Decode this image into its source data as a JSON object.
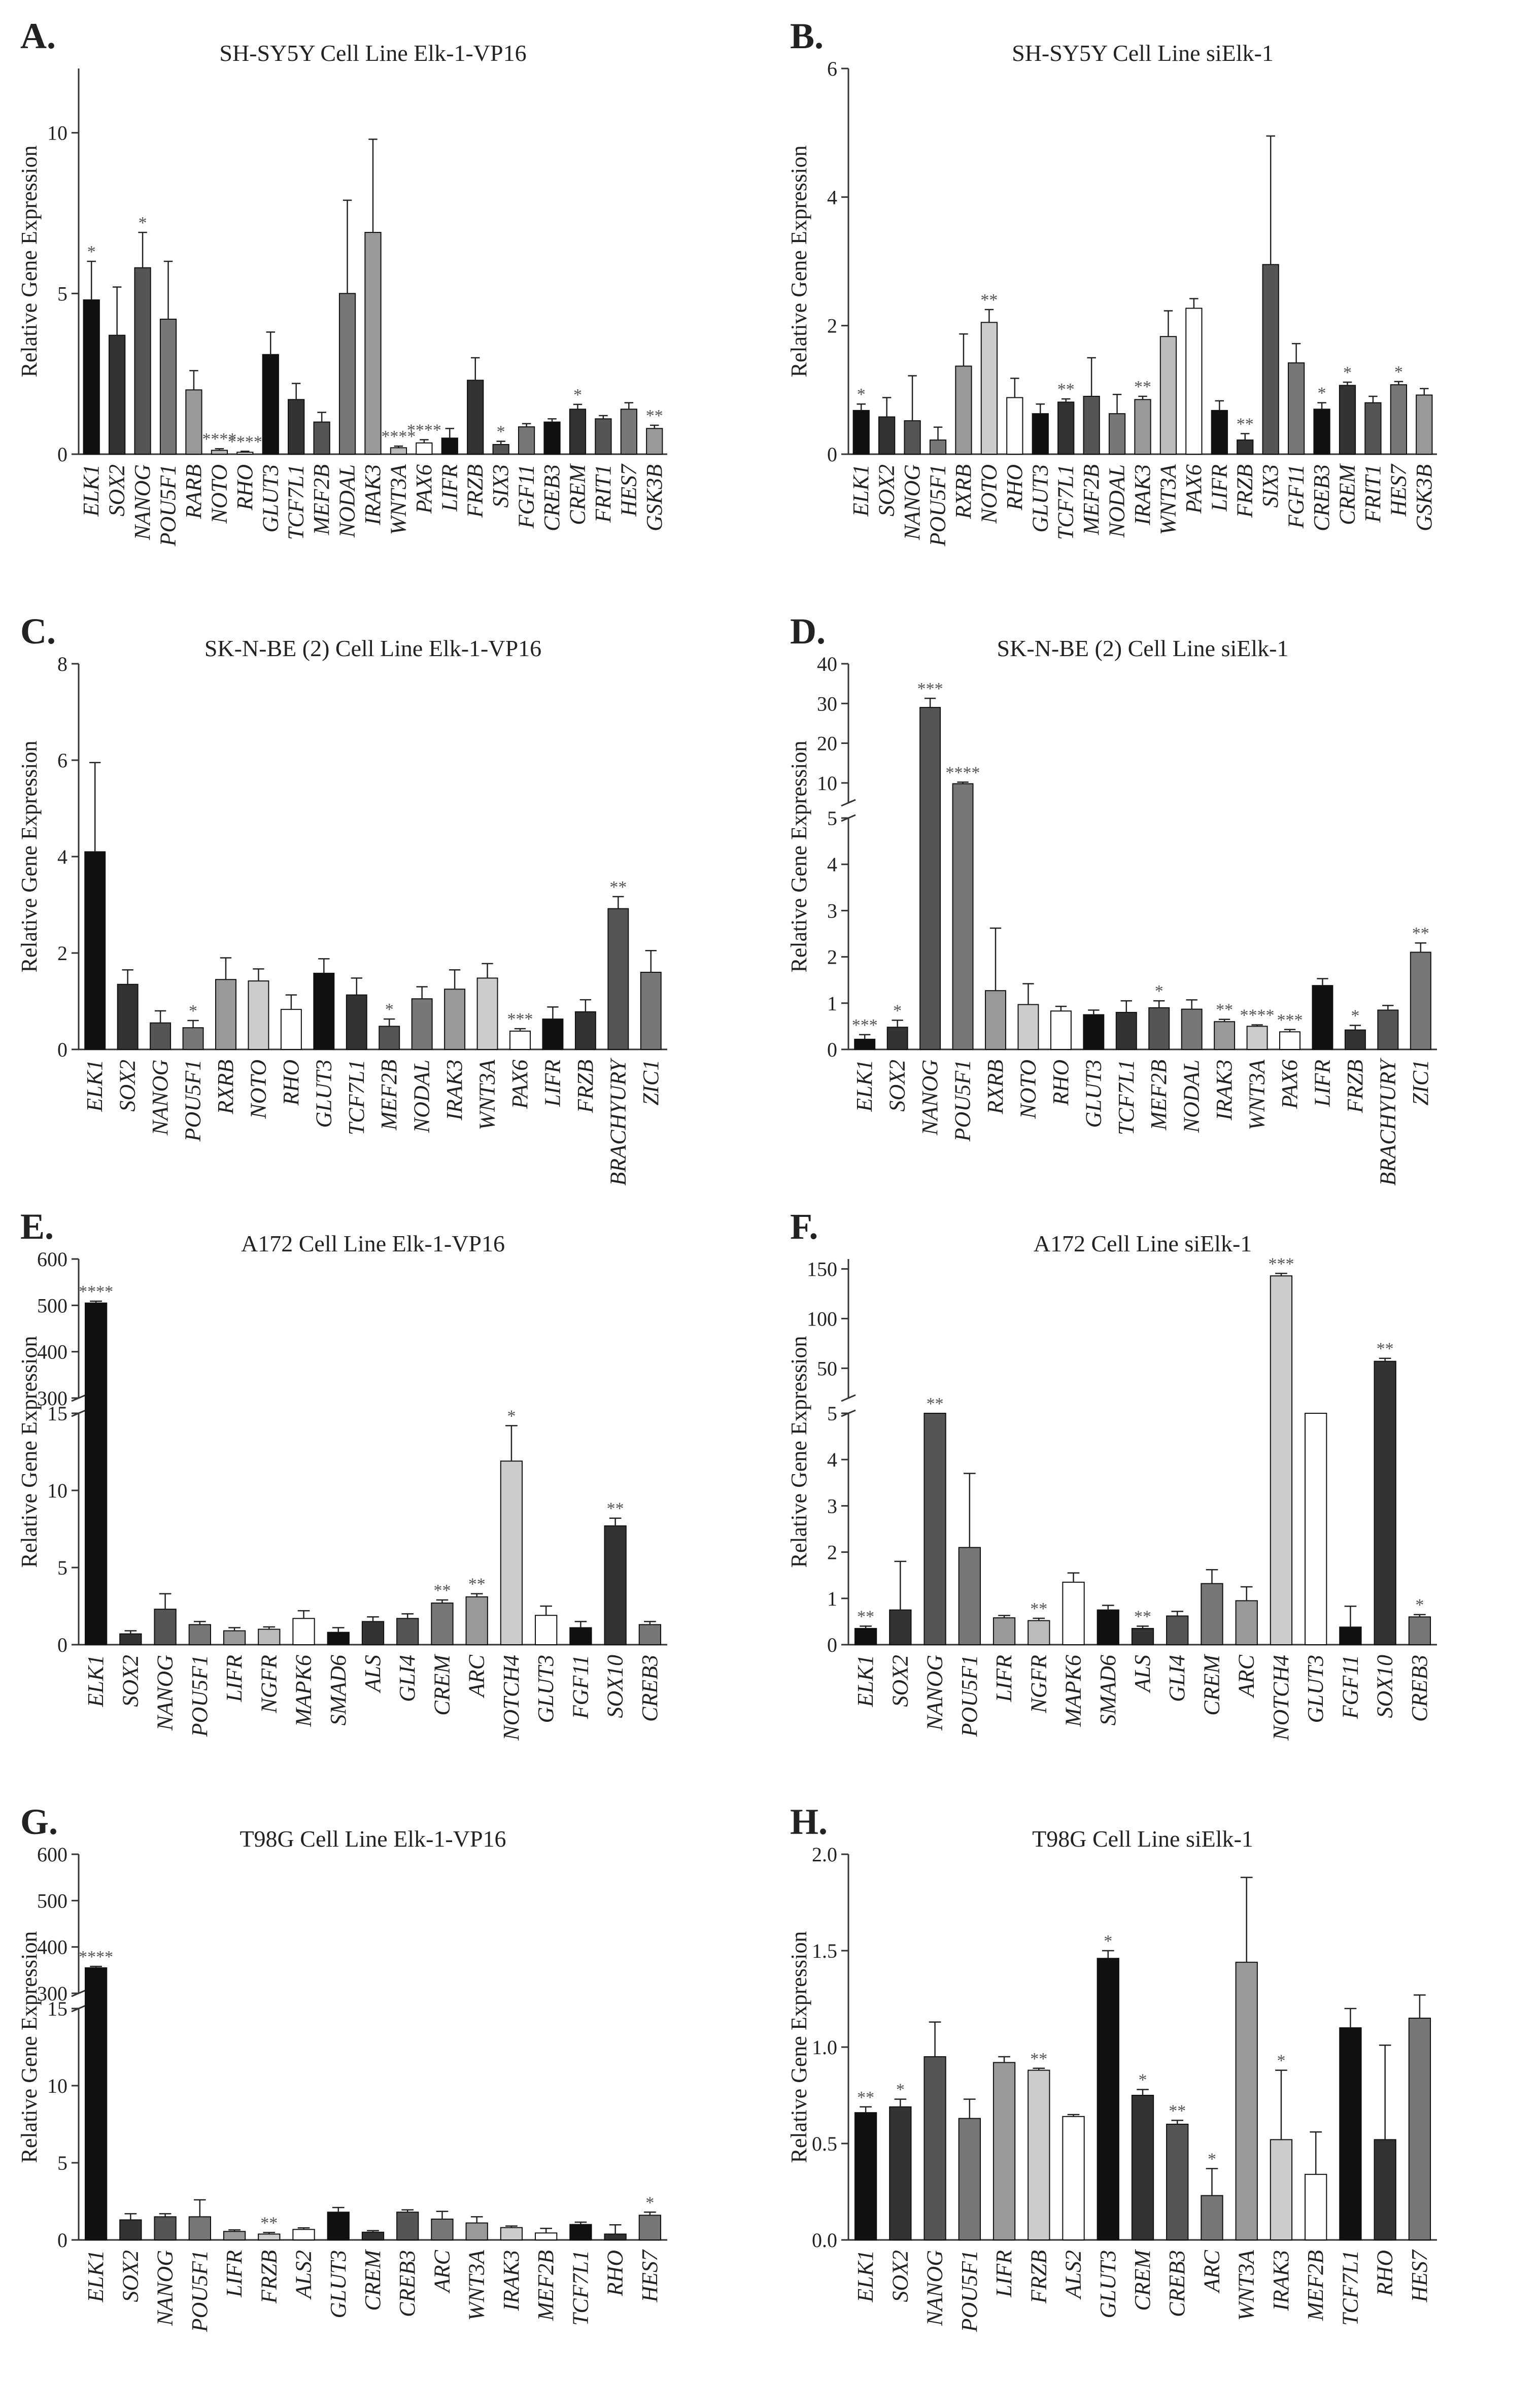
{
  "chart_data": [
    {
      "panel": "A.",
      "type": "bar",
      "title": "SH-SY5Y Cell  Line Elk-1-VP16",
      "ylabel": "Relative Gene Expression",
      "ylim": [
        0,
        12
      ],
      "yticks": [
        0,
        5,
        10
      ],
      "categories": [
        "ELK1",
        "SOX2",
        "NANOG",
        "POU5F1",
        "RARB",
        "NOTO",
        "RHO",
        "GLUT3",
        "TCF7L1",
        "MEF2B",
        "NODAL",
        "IRAK3",
        "WNT3A",
        "PAX6",
        "LIFR",
        "FRZB",
        "SIX3",
        "FGF11",
        "CREB3",
        "CREM",
        "FRIT1",
        "HES7",
        "GSK3B"
      ],
      "values": [
        4.8,
        3.7,
        5.8,
        4.2,
        2.0,
        0.12,
        0.06,
        3.1,
        1.7,
        1.0,
        5.0,
        6.9,
        0.2,
        0.35,
        0.5,
        2.3,
        0.3,
        0.85,
        1.0,
        1.4,
        1.1,
        1.4,
        0.8
      ],
      "errors": [
        1.2,
        1.5,
        1.1,
        1.8,
        0.6,
        0.05,
        0.03,
        0.7,
        0.5,
        0.3,
        2.9,
        2.9,
        0.05,
        0.1,
        0.3,
        0.7,
        0.1,
        0.1,
        0.1,
        0.15,
        0.1,
        0.2,
        0.1
      ],
      "colors": [
        "#111111",
        "#333333",
        "#555555",
        "#777777",
        "#999999",
        "#bbbbbb",
        "#ffffff",
        "#111111",
        "#333333",
        "#555555",
        "#777777",
        "#999999",
        "#bbbbbb",
        "#ffffff",
        "#111111",
        "#333333",
        "#555555",
        "#777777",
        "#111111",
        "#333333",
        "#555555",
        "#777777",
        "#999999"
      ],
      "sig": [
        "*",
        "",
        "*",
        "",
        "",
        "****",
        "****",
        "",
        "",
        "",
        "",
        "",
        "****",
        "****",
        "",
        "",
        "*",
        "",
        "",
        "*",
        "",
        "",
        "**"
      ]
    },
    {
      "panel": "B.",
      "type": "bar",
      "title": "SH-SY5Y Cell Line siElk-1",
      "ylabel": "Relative Gene Expression",
      "ylim": [
        0,
        6
      ],
      "yticks": [
        0,
        2,
        4,
        6
      ],
      "categories": [
        "ELK1",
        "SOX2",
        "NANOG",
        "POU5F1",
        "RXRB",
        "NOTO",
        "RHO",
        "GLUT3",
        "TCF7L1",
        "MEF2B",
        "NODAL",
        "IRAK3",
        "WNT3A",
        "PAX6",
        "LIFR",
        "FRZB",
        "SIX3",
        "FGF11",
        "CREB3",
        "CREM",
        "FRIT1",
        "HES7",
        "GSK3B"
      ],
      "values": [
        0.68,
        0.58,
        0.52,
        0.22,
        1.37,
        2.05,
        0.88,
        0.63,
        0.81,
        0.9,
        0.63,
        0.85,
        1.83,
        2.27,
        0.68,
        0.22,
        2.95,
        1.42,
        0.7,
        1.07,
        0.8,
        1.08,
        0.92
      ],
      "errors": [
        0.1,
        0.3,
        0.7,
        0.2,
        0.5,
        0.2,
        0.3,
        0.15,
        0.05,
        0.6,
        0.3,
        0.05,
        0.4,
        0.15,
        0.15,
        0.1,
        2.0,
        0.3,
        0.1,
        0.05,
        0.1,
        0.05,
        0.1
      ],
      "colors": [
        "#111111",
        "#333333",
        "#555555",
        "#777777",
        "#999999",
        "#cccccc",
        "#ffffff",
        "#111111",
        "#333333",
        "#555555",
        "#777777",
        "#999999",
        "#bbbbbb",
        "#ffffff",
        "#111111",
        "#333333",
        "#555555",
        "#777777",
        "#111111",
        "#333333",
        "#555555",
        "#777777",
        "#999999"
      ],
      "sig": [
        "*",
        "",
        "",
        "",
        "",
        "**",
        "",
        "",
        "**",
        "",
        "",
        "**",
        "",
        "",
        "",
        "**",
        "",
        "",
        "*",
        "*",
        "",
        "*",
        ""
      ]
    },
    {
      "panel": "C.",
      "type": "bar",
      "title": "SK-N-BE (2) Cell Line Elk-1-VP16",
      "ylabel": "Relative Gene Expression",
      "ylim": [
        0,
        8
      ],
      "yticks": [
        0,
        2,
        4,
        6,
        8
      ],
      "categories": [
        "ELK1",
        "SOX2",
        "NANOG",
        "POU5F1",
        "RXRB",
        "NOTO",
        "RHO",
        "GLUT3",
        "TCF7L1",
        "MEF2B",
        "NODAL",
        "IRAK3",
        "WNT3A",
        "PAX6",
        "LIFR",
        "FRZB",
        "BRACHYURY",
        "ZIC1"
      ],
      "values": [
        4.1,
        1.35,
        0.55,
        0.45,
        1.45,
        1.42,
        0.83,
        1.58,
        1.13,
        0.48,
        1.05,
        1.25,
        1.48,
        0.38,
        0.63,
        0.78,
        2.92,
        1.6
      ],
      "errors": [
        1.85,
        0.3,
        0.25,
        0.15,
        0.45,
        0.25,
        0.3,
        0.3,
        0.35,
        0.15,
        0.25,
        0.4,
        0.3,
        0.05,
        0.25,
        0.25,
        0.25,
        0.45
      ],
      "colors": [
        "#111111",
        "#333333",
        "#555555",
        "#777777",
        "#999999",
        "#cccccc",
        "#ffffff",
        "#111111",
        "#333333",
        "#555555",
        "#777777",
        "#999999",
        "#cccccc",
        "#ffffff",
        "#111111",
        "#333333",
        "#555555",
        "#777777"
      ],
      "sig": [
        "",
        "",
        "",
        "*",
        "",
        "",
        "",
        "",
        "",
        "*",
        "",
        "",
        "",
        "***",
        "",
        "",
        "**",
        ""
      ]
    },
    {
      "panel": "D.",
      "type": "bar",
      "title": "SK-N-BE (2) Cell Line siElk-1",
      "ylabel": "Relative Gene Expression",
      "ylim_lower": [
        0,
        5
      ],
      "ylim_upper": [
        5,
        40
      ],
      "yticks_lower": [
        0,
        1,
        2,
        3,
        4,
        5
      ],
      "yticks_upper": [
        10,
        20,
        30,
        40
      ],
      "categories": [
        "ELK1",
        "SOX2",
        "NANOG",
        "POU5F1",
        "RXRB",
        "NOTO",
        "RHO",
        "GLUT3",
        "TCF7L1",
        "MEF2B",
        "NODAL",
        "IRAK3",
        "WNT3A",
        "PAX6",
        "LIFR",
        "FRZB",
        "BRACHYURY",
        "ZIC1"
      ],
      "values": [
        0.22,
        0.48,
        29,
        9.8,
        1.27,
        0.97,
        0.83,
        0.75,
        0.8,
        0.9,
        0.87,
        0.6,
        0.5,
        0.38,
        1.38,
        0.42,
        0.85,
        2.1
      ],
      "errors": [
        0.1,
        0.15,
        2.3,
        0.4,
        1.35,
        0.45,
        0.1,
        0.1,
        0.25,
        0.15,
        0.2,
        0.05,
        0.03,
        0.05,
        0.15,
        0.1,
        0.1,
        0.2
      ],
      "colors": [
        "#111111",
        "#333333",
        "#555555",
        "#777777",
        "#999999",
        "#cccccc",
        "#ffffff",
        "#111111",
        "#333333",
        "#555555",
        "#777777",
        "#999999",
        "#cccccc",
        "#ffffff",
        "#111111",
        "#333333",
        "#555555",
        "#777777"
      ],
      "sig": [
        "***",
        "*",
        "***",
        "****",
        "",
        "",
        "",
        "",
        "",
        "*",
        "",
        "**",
        "****",
        "***",
        "",
        "*",
        "",
        "**"
      ]
    },
    {
      "panel": "E.",
      "type": "bar",
      "title": "A172 Cell Line Elk-1-VP16",
      "ylabel": "Relative Gene Expression",
      "ylim_lower": [
        0,
        15
      ],
      "ylim_upper": [
        300,
        600
      ],
      "yticks_lower": [
        0,
        5,
        10,
        15
      ],
      "yticks_upper": [
        300,
        400,
        500,
        600
      ],
      "categories": [
        "ELK1",
        "SOX2",
        "NANOG",
        "POU5F1",
        "LIFR",
        "NGFR",
        "MAPK6",
        "SMAD6",
        "ALS",
        "GLI4",
        "CREM",
        "ARC",
        "NOTCH4",
        "GLUT3",
        "FGF11",
        "SOX10",
        "CREB3"
      ],
      "values": [
        505,
        0.7,
        2.3,
        1.3,
        0.9,
        1.0,
        1.7,
        0.8,
        1.5,
        1.7,
        2.7,
        3.1,
        11.9,
        1.9,
        1.1,
        7.7,
        1.3
      ],
      "errors": [
        4,
        0.2,
        1.0,
        0.2,
        0.2,
        0.15,
        0.5,
        0.3,
        0.3,
        0.3,
        0.2,
        0.2,
        2.3,
        0.6,
        0.4,
        0.5,
        0.2
      ],
      "colors": [
        "#111111",
        "#333333",
        "#555555",
        "#777777",
        "#999999",
        "#bbbbbb",
        "#ffffff",
        "#111111",
        "#333333",
        "#555555",
        "#777777",
        "#999999",
        "#cccccc",
        "#ffffff",
        "#111111",
        "#333333",
        "#777777"
      ],
      "sig": [
        "****",
        "",
        "",
        "",
        "",
        "",
        "",
        "",
        "",
        "",
        "**",
        "**",
        "*",
        "",
        "",
        "**",
        ""
      ]
    },
    {
      "panel": "F.",
      "type": "bar",
      "title": "A172 Cell Line siElk-1",
      "ylabel": "Relative Gene Expression",
      "ylim_lower": [
        0,
        5
      ],
      "ylim_upper": [
        20,
        160
      ],
      "yticks_lower": [
        0,
        1,
        2,
        3,
        4,
        5
      ],
      "yticks_upper": [
        50,
        100,
        150
      ],
      "categories": [
        "ELK1",
        "SOX2",
        "NANOG",
        "POU5F1",
        "LIFR",
        "NGFR",
        "MAPK6",
        "SMAD6",
        "ALS",
        "GLI4",
        "CREM",
        "ARC",
        "NOTCH4",
        "GLUT3",
        "FGF11",
        "SOX10",
        "CREB3"
      ],
      "values": [
        0.35,
        0.75,
        5.0,
        2.1,
        0.58,
        0.52,
        1.35,
        0.75,
        0.35,
        0.62,
        1.32,
        0.95,
        143,
        5.0,
        0.38,
        57,
        0.6
      ],
      "errors": [
        0.05,
        1.05,
        0.0,
        1.6,
        0.05,
        0.05,
        0.2,
        0.1,
        0.05,
        0.1,
        0.3,
        0.3,
        2.5,
        0.0,
        0.45,
        3.0,
        0.05
      ],
      "colors": [
        "#111111",
        "#333333",
        "#555555",
        "#777777",
        "#999999",
        "#bbbbbb",
        "#ffffff",
        "#111111",
        "#333333",
        "#555555",
        "#777777",
        "#999999",
        "#cccccc",
        "#ffffff",
        "#111111",
        "#333333",
        "#777777"
      ],
      "sig": [
        "**",
        "",
        "**",
        "",
        "",
        "**",
        "",
        "",
        "**",
        "",
        "",
        "",
        "***",
        "",
        "",
        "**",
        "*"
      ]
    },
    {
      "panel": "G.",
      "type": "bar",
      "title": "T98G Cell Line Elk-1-VP16",
      "ylabel": "Relative Gene Expression",
      "ylim_lower": [
        0,
        15
      ],
      "ylim_upper": [
        300,
        600
      ],
      "yticks_lower": [
        0,
        5,
        10,
        15
      ],
      "yticks_upper": [
        300,
        400,
        500,
        600
      ],
      "categories": [
        "ELK1",
        "SOX2",
        "NANOG",
        "POU5F1",
        "LIFR",
        "FRZB",
        "ALS2",
        "GLUT3",
        "CREM",
        "CREB3",
        "ARC",
        "WNT3A",
        "IRAK3",
        "MEF2B",
        "TCF7L1",
        "RHO",
        "HES7"
      ],
      "values": [
        355,
        1.3,
        1.5,
        1.5,
        0.55,
        0.38,
        0.68,
        1.8,
        0.5,
        1.8,
        1.35,
        1.1,
        0.8,
        0.45,
        1.0,
        0.38,
        1.6
      ],
      "errors": [
        3,
        0.4,
        0.2,
        1.1,
        0.1,
        0.1,
        0.1,
        0.3,
        0.1,
        0.15,
        0.5,
        0.4,
        0.1,
        0.3,
        0.15,
        0.6,
        0.2
      ],
      "colors": [
        "#111111",
        "#333333",
        "#555555",
        "#777777",
        "#999999",
        "#cccccc",
        "#ffffff",
        "#111111",
        "#333333",
        "#555555",
        "#777777",
        "#999999",
        "#cccccc",
        "#ffffff",
        "#111111",
        "#333333",
        "#777777"
      ],
      "sig": [
        "****",
        "",
        "",
        "",
        "",
        "**",
        "",
        "",
        "",
        "",
        "",
        "",
        "",
        "",
        "",
        "",
        "*"
      ]
    },
    {
      "panel": "H.",
      "type": "bar",
      "title": "T98G Cell Line siElk-1",
      "ylabel": "Relative Gene Expression",
      "ylim": [
        0,
        2.0
      ],
      "yticks": [
        0.0,
        0.5,
        1.0,
        1.5,
        2.0
      ],
      "categories": [
        "ELK1",
        "SOX2",
        "NANOG",
        "POU5F1",
        "LIFR",
        "FRZB",
        "ALS2",
        "GLUT3",
        "CREM",
        "CREB3",
        "ARC",
        "WNT3A",
        "IRAK3",
        "MEF2B",
        "TCF7L1",
        "RHO",
        "HES7"
      ],
      "values": [
        0.66,
        0.69,
        0.95,
        0.63,
        0.92,
        0.88,
        0.64,
        1.46,
        0.75,
        0.6,
        0.23,
        1.44,
        0.52,
        0.34,
        1.1,
        0.52,
        1.15
      ],
      "errors": [
        0.03,
        0.04,
        0.18,
        0.1,
        0.03,
        0.01,
        0.01,
        0.04,
        0.03,
        0.02,
        0.14,
        0.44,
        0.36,
        0.22,
        0.1,
        0.49,
        0.12
      ],
      "colors": [
        "#111111",
        "#333333",
        "#555555",
        "#777777",
        "#999999",
        "#cccccc",
        "#ffffff",
        "#111111",
        "#333333",
        "#555555",
        "#777777",
        "#999999",
        "#cccccc",
        "#ffffff",
        "#111111",
        "#333333",
        "#777777"
      ],
      "sig": [
        "**",
        "*",
        "",
        "",
        "",
        "**",
        "",
        "*",
        "*",
        "**",
        "*",
        "",
        "*",
        "",
        "",
        "",
        ""
      ]
    }
  ]
}
